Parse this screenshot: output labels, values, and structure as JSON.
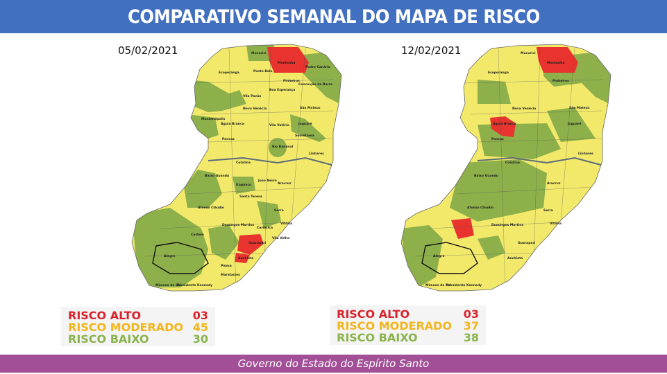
{
  "header": {
    "title": "COMPARATIVO SEMANAL DO MAPA DE RISCO"
  },
  "colors": {
    "header": "#4170c0",
    "footer": "#a24f98",
    "high": "#e8332e",
    "moderate": "#f2e96b",
    "low": "#8db04a"
  },
  "maps": [
    {
      "date": "05/02/2021",
      "legend": [
        {
          "label": "RISCO ALTO",
          "value": "03"
        },
        {
          "label": "RISCO MODERADO",
          "value": "45"
        },
        {
          "label": "RISCO BAIXO",
          "value": "30"
        }
      ]
    },
    {
      "date": "12/02/2021",
      "legend": [
        {
          "label": "RISCO ALTO",
          "value": "03"
        },
        {
          "label": "RISCO MODERADO",
          "value": "37"
        },
        {
          "label": "RISCO BAIXO",
          "value": "38"
        }
      ]
    }
  ],
  "municipalities": [
    "Mucurici",
    "Montanha",
    "Pedro Canário",
    "Ecoporanga",
    "Ponto Belo",
    "Pinheiros",
    "Conceição da Barra",
    "Boa Esperança",
    "Vila Pavão",
    "São Mateus",
    "Nova Venécia",
    "Mantenópolis",
    "Águia Branca",
    "Vila Valério",
    "Jaguaré",
    "Pancas",
    "Sooretama",
    "Rio Bananal",
    "Linhares",
    "Colatina",
    "Baixo Guandu",
    "Itaguaçu",
    "João Neiva",
    "Aracruz",
    "Santa Teresa",
    "Serra",
    "Afonso Cláudio",
    "Domingos Martins",
    "Cariacica",
    "Vitória",
    "Vila Velha",
    "Guarapari",
    "Castelo",
    "Alegre",
    "Anchieta",
    "Piúma",
    "Marataízes",
    "Presidente Kennedy",
    "Mimoso do Sul"
  ],
  "footer": {
    "text": "Governo do Estado do Espírito Santo"
  }
}
